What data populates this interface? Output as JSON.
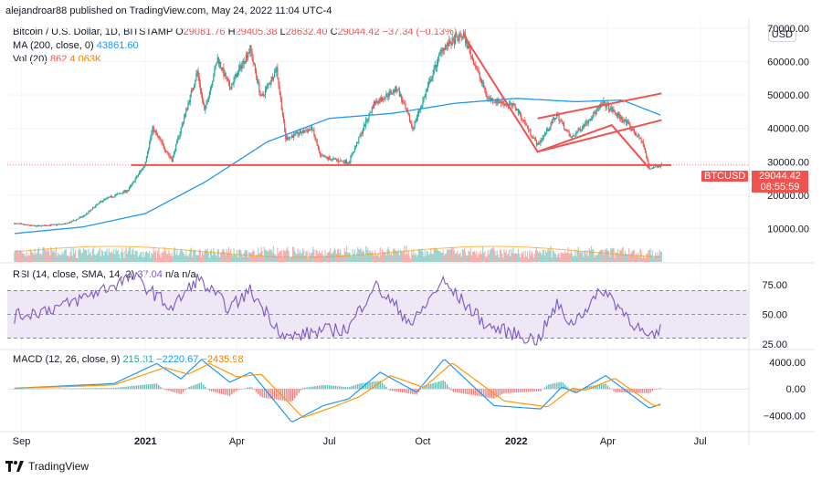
{
  "header": {
    "author": "alejandroar88",
    "published_text": "published on TradingView.com, May 24, 2022 11:04 UTC-4"
  },
  "legends": {
    "main": {
      "symbol": "Bitcoin / U.S. Dollar, 1D, BITSTAMP",
      "open_label": "O",
      "open": "29081.76",
      "high_label": "H",
      "high": "29405.38",
      "low_label": "L",
      "low": "28632.40",
      "close_label": "C",
      "close": "29044.42",
      "change": "−37.34 (−0.13%)",
      "ma_label": "MA (200, close, 0)",
      "ma_value": "43861.60",
      "vol_label": "Vol (20)",
      "vol_value": "862",
      "vol_ma": "4.063K"
    },
    "rsi": {
      "label": "RSI (14, close, SMA, 14, 2)",
      "value": "37.04",
      "na1": "n/a",
      "na2": "n/a"
    },
    "macd": {
      "label": "MACD (12, 26, close, 9)",
      "hist": "215.31",
      "macd": "−2220.67",
      "signal": "−2435.98"
    }
  },
  "price_axis": {
    "currency_badge": "USD",
    "last_price": "29044.42",
    "countdown": "08:55:59",
    "symbol_tag": "BTCUSD"
  },
  "footer": {
    "brand": "TradingView"
  },
  "colors": {
    "up": "#26a69a",
    "down": "#ef5350",
    "ma": "#2196f3",
    "drawing": "#ef5350",
    "rsi": "#7e57c2",
    "rsi_band": "#ede7f6",
    "macd": "#2196f3",
    "signal": "#ff9800"
  },
  "chart_data": [
    {
      "type": "candlestick",
      "title": "Bitcoin / U.S. Dollar, 1D, BITSTAMP",
      "x_ticks": [
        "Sep",
        "2021",
        "Apr",
        "Jul",
        "Oct",
        "2022",
        "Apr",
        "Jul"
      ],
      "y_ticks": [
        "70000.00",
        "60000.00",
        "50000.00",
        "40000.00",
        "30000.00",
        "20000.00",
        "10000.00"
      ],
      "ylim": [
        0,
        73000
      ],
      "price_path": [
        [
          "2020-08-25",
          11500
        ],
        [
          "2020-09-15",
          10700
        ],
        [
          "2020-10-15",
          11400
        ],
        [
          "2020-11-01",
          13700
        ],
        [
          "2020-11-20",
          18500
        ],
        [
          "2020-12-15",
          21500
        ],
        [
          "2020-12-31",
          29000
        ],
        [
          "2021-01-08",
          40000
        ],
        [
          "2021-01-27",
          30500
        ],
        [
          "2021-02-21",
          57000
        ],
        [
          "2021-02-28",
          45000
        ],
        [
          "2021-03-13",
          61000
        ],
        [
          "2021-03-25",
          52000
        ],
        [
          "2021-04-14",
          64000
        ],
        [
          "2021-04-25",
          49000
        ],
        [
          "2021-05-10",
          58000
        ],
        [
          "2021-05-19",
          37000
        ],
        [
          "2021-06-14",
          40000
        ],
        [
          "2021-06-22",
          31500
        ],
        [
          "2021-07-20",
          29800
        ],
        [
          "2021-08-14",
          47500
        ],
        [
          "2021-09-06",
          52000
        ],
        [
          "2021-09-21",
          40000
        ],
        [
          "2021-10-20",
          64000
        ],
        [
          "2021-11-10",
          68000
        ],
        [
          "2021-12-04",
          49000
        ],
        [
          "2021-12-31",
          46500
        ],
        [
          "2022-01-22",
          35000
        ],
        [
          "2022-02-10",
          44000
        ],
        [
          "2022-02-24",
          37000
        ],
        [
          "2022-03-28",
          47500
        ],
        [
          "2022-04-20",
          41500
        ],
        [
          "2022-05-05",
          36000
        ],
        [
          "2022-05-12",
          28000
        ],
        [
          "2022-05-24",
          29044
        ]
      ],
      "ma200": {
        "name": "MA (200, close, 0)",
        "path": [
          [
            "2020-08-25",
            8500
          ],
          [
            "2020-11-01",
            10500
          ],
          [
            "2021-01-01",
            14500
          ],
          [
            "2021-03-01",
            24000
          ],
          [
            "2021-05-01",
            36000
          ],
          [
            "2021-07-01",
            43000
          ],
          [
            "2021-09-01",
            44500
          ],
          [
            "2021-11-01",
            47500
          ],
          [
            "2022-01-01",
            49000
          ],
          [
            "2022-03-01",
            48000
          ],
          [
            "2022-04-15",
            48500
          ],
          [
            "2022-05-24",
            43861
          ]
        ]
      },
      "drawings": {
        "support_line": 29000,
        "wedge": [
          [
            "2021-11-10",
            68000
          ],
          [
            "2022-01-22",
            33000
          ],
          [
            "2022-04-05",
            41000
          ],
          [
            "2022-05-12",
            28000
          ]
        ],
        "channel_top": [
          [
            "2022-01-22",
            43000
          ],
          [
            "2022-05-24",
            50500
          ]
        ],
        "channel_bottom": [
          [
            "2022-01-22",
            33000
          ],
          [
            "2022-05-24",
            42500
          ]
        ]
      },
      "volume_ma_last": 4063
    },
    {
      "type": "line",
      "title": "RSI (14, close, SMA, 14, 2)",
      "y_ticks": [
        "75.00",
        "50.00",
        "25.00"
      ],
      "band": [
        30,
        70
      ],
      "ylim": [
        22,
        88
      ],
      "path": [
        [
          "2020-08-25",
          48
        ],
        [
          "2020-10-15",
          58
        ],
        [
          "2020-12-20",
          82
        ],
        [
          "2021-01-27",
          55
        ],
        [
          "2021-02-21",
          80
        ],
        [
          "2021-03-25",
          55
        ],
        [
          "2021-04-14",
          70
        ],
        [
          "2021-05-19",
          30
        ],
        [
          "2021-06-22",
          36
        ],
        [
          "2021-07-20",
          38
        ],
        [
          "2021-08-14",
          75
        ],
        [
          "2021-09-21",
          42
        ],
        [
          "2021-10-20",
          78
        ],
        [
          "2021-12-04",
          40
        ],
        [
          "2022-01-22",
          28
        ],
        [
          "2022-02-10",
          58
        ],
        [
          "2022-02-24",
          42
        ],
        [
          "2022-03-28",
          71
        ],
        [
          "2022-05-12",
          28
        ],
        [
          "2022-05-24",
          37.04
        ]
      ]
    },
    {
      "type": "line",
      "title": "MACD (12, 26, close, 9)",
      "y_ticks": [
        "4000.00",
        "0.00",
        "−4000.00"
      ],
      "ylim": [
        -6000,
        5500
      ],
      "macd_path": [
        [
          "2020-08-25",
          100
        ],
        [
          "2020-12-01",
          800
        ],
        [
          "2021-01-12",
          3800
        ],
        [
          "2021-02-05",
          1500
        ],
        [
          "2021-02-25",
          4400
        ],
        [
          "2021-03-25",
          1000
        ],
        [
          "2021-04-15",
          2500
        ],
        [
          "2021-05-25",
          -5000
        ],
        [
          "2021-06-25",
          -2500
        ],
        [
          "2021-07-20",
          -1500
        ],
        [
          "2021-08-20",
          2500
        ],
        [
          "2021-09-25",
          -500
        ],
        [
          "2021-10-22",
          4500
        ],
        [
          "2021-12-10",
          -2500
        ],
        [
          "2022-01-25",
          -3000
        ],
        [
          "2022-02-15",
          300
        ],
        [
          "2022-03-01",
          -600
        ],
        [
          "2022-03-30",
          2000
        ],
        [
          "2022-05-12",
          -2900
        ],
        [
          "2022-05-24",
          -2220.67
        ]
      ],
      "signal_path": [
        [
          "2020-08-25",
          80
        ],
        [
          "2020-12-01",
          600
        ],
        [
          "2021-01-20",
          3200
        ],
        [
          "2021-02-12",
          2200
        ],
        [
          "2021-03-05",
          3800
        ],
        [
          "2021-04-01",
          1800
        ],
        [
          "2021-04-25",
          2200
        ],
        [
          "2021-06-05",
          -4300
        ],
        [
          "2021-07-05",
          -2700
        ],
        [
          "2021-07-30",
          -1200
        ],
        [
          "2021-08-30",
          2000
        ],
        [
          "2021-10-02",
          200
        ],
        [
          "2021-10-30",
          3900
        ],
        [
          "2021-12-20",
          -1800
        ],
        [
          "2022-02-01",
          -2700
        ],
        [
          "2022-02-25",
          100
        ],
        [
          "2022-03-10",
          -200
        ],
        [
          "2022-04-08",
          1600
        ],
        [
          "2022-05-16",
          -2500
        ],
        [
          "2022-05-24",
          -2435.98
        ]
      ],
      "histogram_last": 215.31
    }
  ]
}
